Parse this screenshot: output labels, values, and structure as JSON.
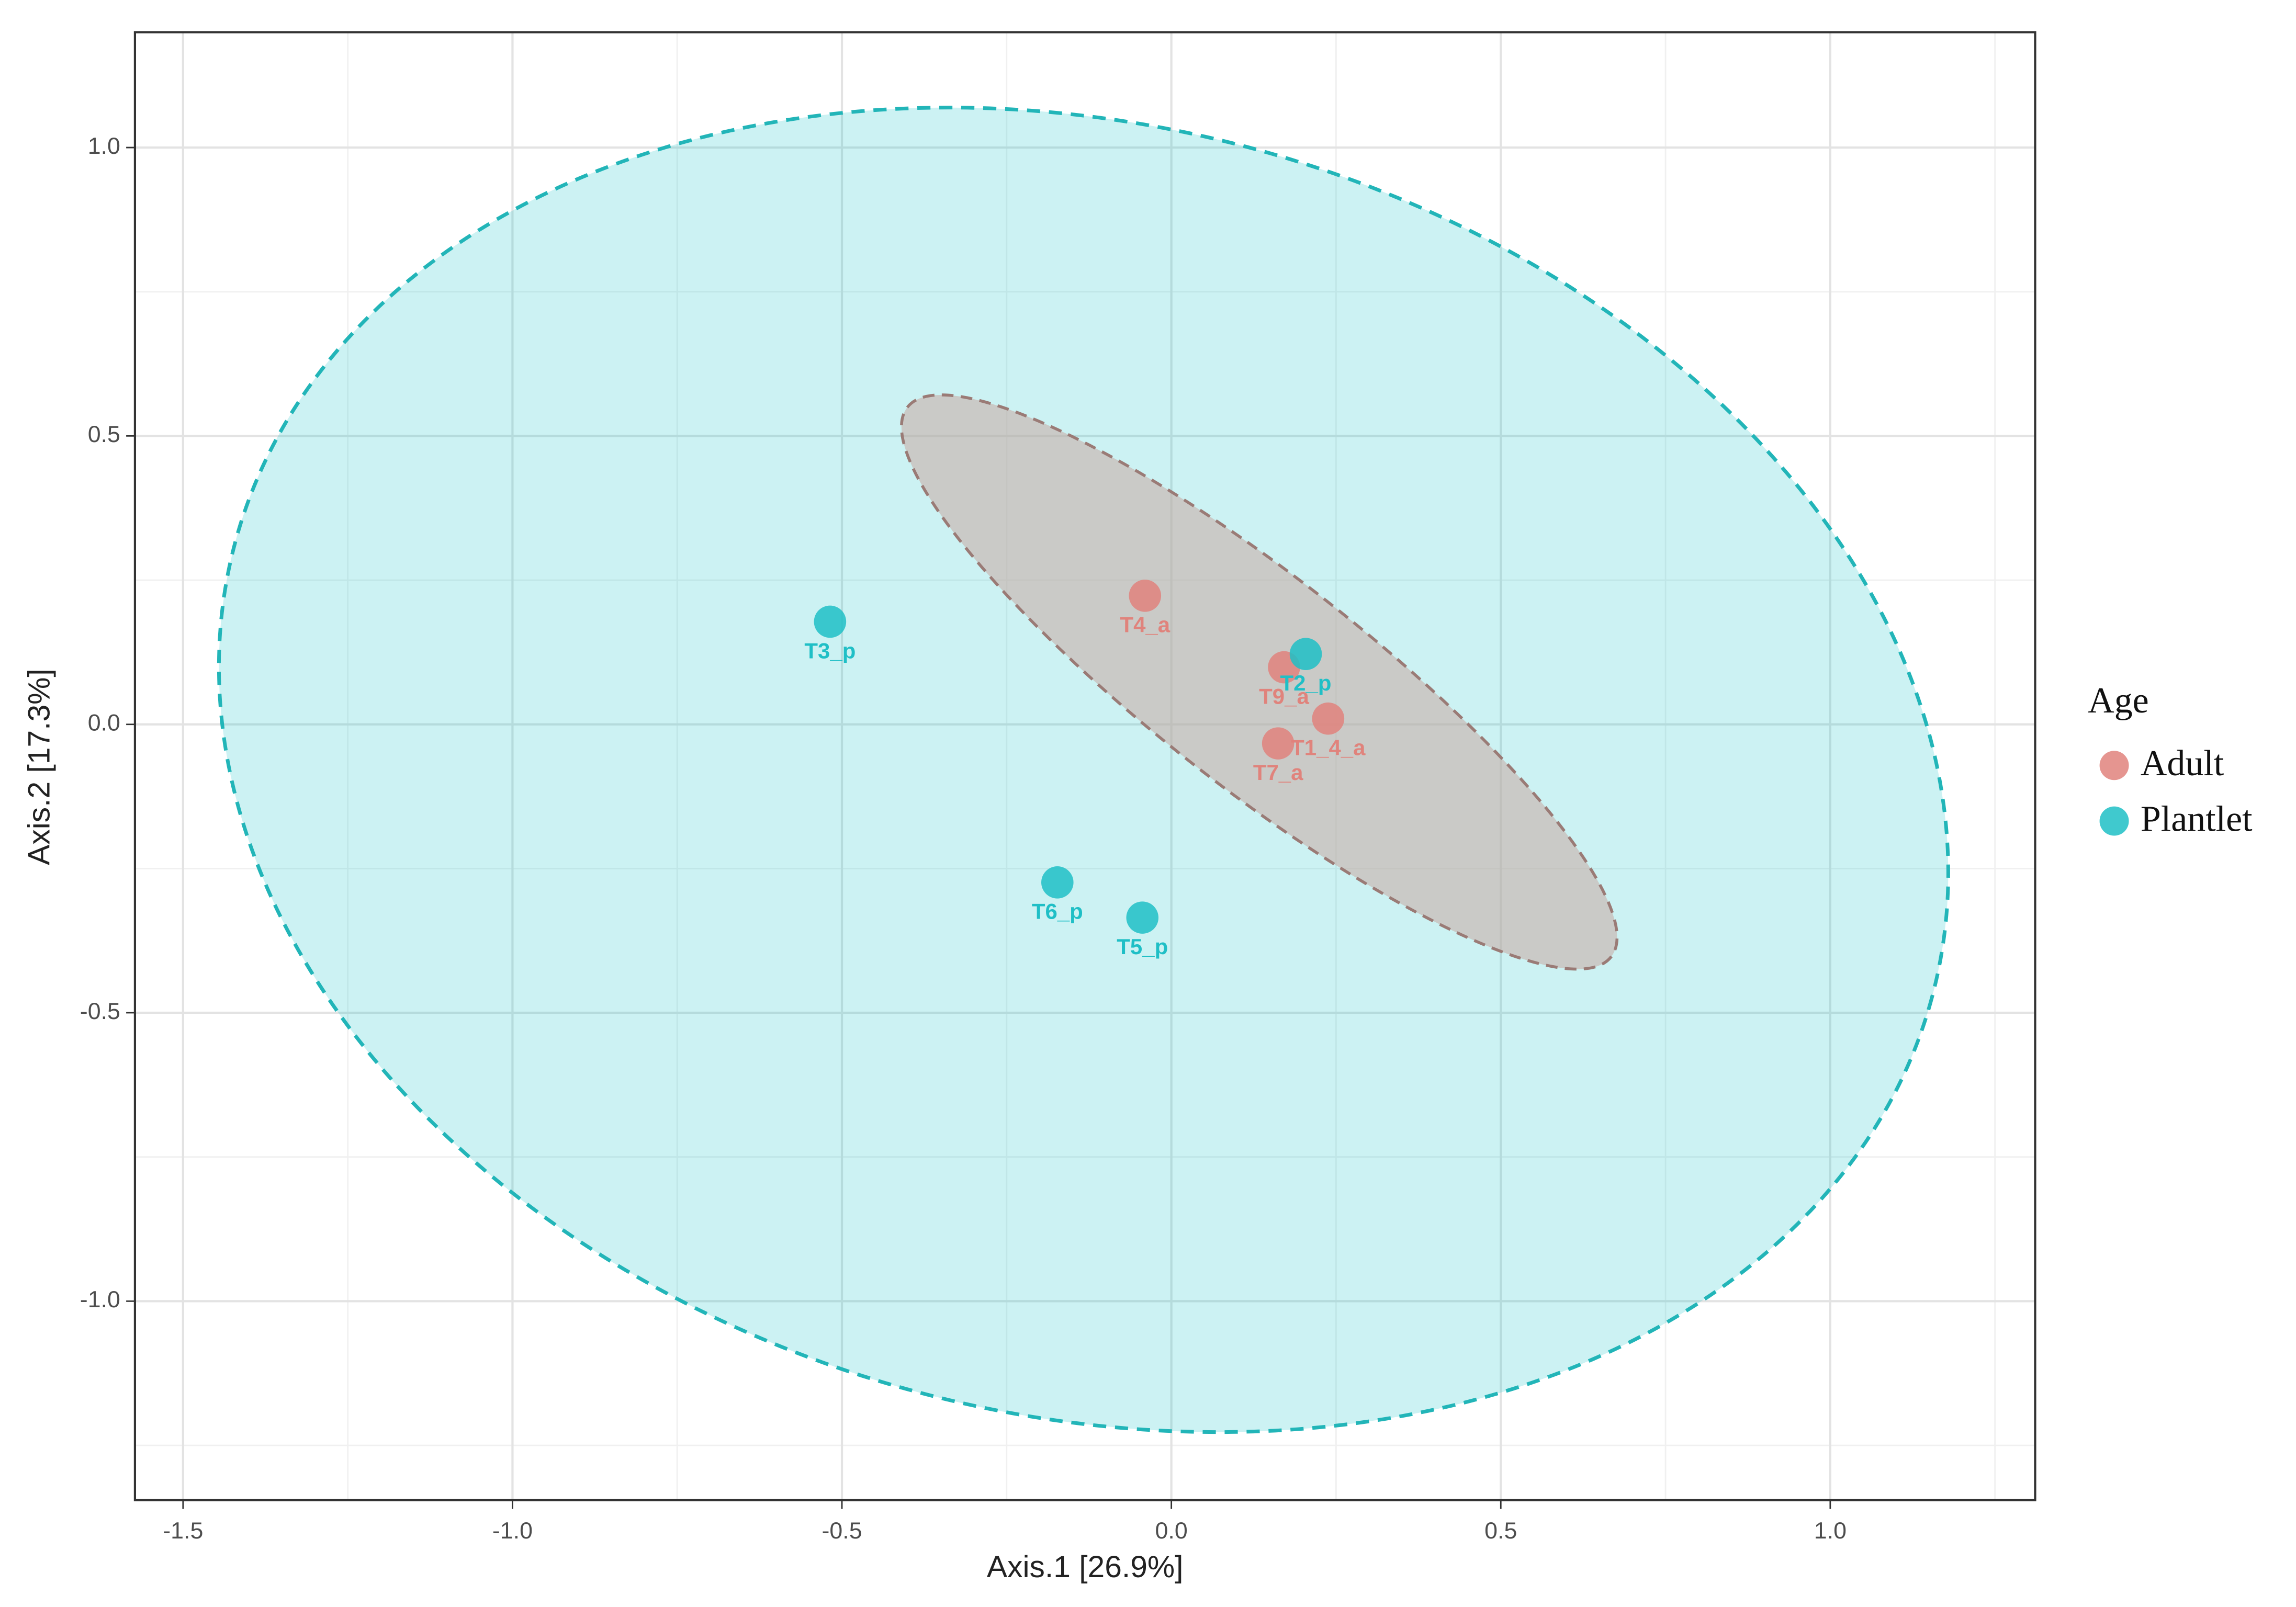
{
  "chart_data": {
    "type": "scatter",
    "x_label": "Axis.1   [26.9%]",
    "y_label": "Axis.2   [17.3%]",
    "legend_title": "Age",
    "xlim": [
      -1.573,
      1.311
    ],
    "ylim": [
      -1.345,
      1.2
    ],
    "xticks": [
      -1.5,
      {
        "value": -1.0,
        "label": "-1.0"
      },
      -0.5,
      {
        "value": 0.0,
        "label": "0.0"
      },
      0.5,
      {
        "value": 1.0,
        "label": "1.0"
      }
    ],
    "yticks": [
      {
        "value": -1.0,
        "label": "-1.0"
      },
      -0.5,
      {
        "value": 0.0,
        "label": "0.0"
      },
      0.5,
      {
        "value": 1.0,
        "label": "1.0"
      }
    ],
    "grid": true,
    "legend": "right",
    "series": [
      {
        "name": "Adult",
        "color": "#e0837c",
        "x": [
          -0.04,
          0.171,
          0.238,
          0.162
        ],
        "y": [
          0.223,
          0.099,
          0.01,
          -0.033
        ],
        "labels": [
          "T4_a",
          "T9_a",
          "T1_4_a",
          "T7_a"
        ]
      },
      {
        "name": "Plantlet",
        "color": "#1fbfc6",
        "x": [
          -0.518,
          -0.173,
          -0.044,
          0.204
        ],
        "y": [
          0.178,
          -0.274,
          -0.335,
          0.122
        ],
        "labels": [
          "T3_p",
          "T6_p",
          "T5_p",
          "T2_p"
        ]
      }
    ]
  }
}
